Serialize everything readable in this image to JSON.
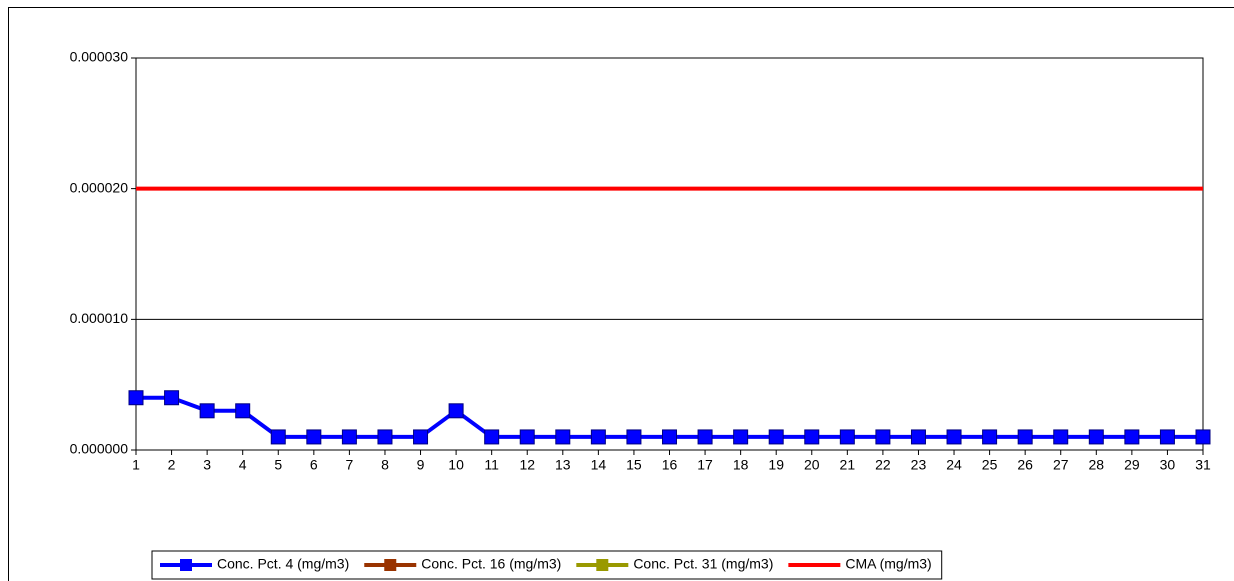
{
  "chart_data": {
    "type": "line",
    "categories": [
      "1",
      "2",
      "3",
      "4",
      "5",
      "6",
      "7",
      "8",
      "9",
      "10",
      "11",
      "12",
      "13",
      "14",
      "15",
      "16",
      "17",
      "18",
      "19",
      "20",
      "21",
      "22",
      "23",
      "24",
      "25",
      "26",
      "27",
      "28",
      "29",
      "30",
      "31"
    ],
    "series": [
      {
        "name": "Conc. Pct. 4 (mg/m3)",
        "color": "#0000ff",
        "marker": "square",
        "values": [
          4e-06,
          4e-06,
          3e-06,
          3e-06,
          1e-06,
          1e-06,
          1e-06,
          1e-06,
          1e-06,
          3e-06,
          1e-06,
          1e-06,
          1e-06,
          1e-06,
          1e-06,
          1e-06,
          1e-06,
          1e-06,
          1e-06,
          1e-06,
          1e-06,
          1e-06,
          1e-06,
          1e-06,
          1e-06,
          1e-06,
          1e-06,
          1e-06,
          1e-06,
          1e-06,
          1e-06
        ]
      },
      {
        "name": "Conc. Pct. 16 (mg/m3)",
        "color": "#993300",
        "marker": "square",
        "values": [
          null,
          null,
          null,
          null,
          null,
          null,
          null,
          null,
          null,
          null,
          null,
          null,
          null,
          null,
          null,
          null,
          null,
          null,
          null,
          null,
          null,
          null,
          null,
          null,
          null,
          null,
          null,
          null,
          null,
          null,
          null
        ]
      },
      {
        "name": "Conc. Pct. 31 (mg/m3)",
        "color": "#999900",
        "marker": "square",
        "values": [
          null,
          null,
          null,
          null,
          null,
          null,
          null,
          null,
          null,
          null,
          null,
          null,
          null,
          null,
          null,
          null,
          null,
          null,
          null,
          null,
          null,
          null,
          null,
          null,
          null,
          null,
          null,
          null,
          null,
          null,
          null
        ]
      },
      {
        "name": "CMA (mg/m3)",
        "color": "#ff0000",
        "values": [
          2e-05,
          2e-05,
          2e-05,
          2e-05,
          2e-05,
          2e-05,
          2e-05,
          2e-05,
          2e-05,
          2e-05,
          2e-05,
          2e-05,
          2e-05,
          2e-05,
          2e-05,
          2e-05,
          2e-05,
          2e-05,
          2e-05,
          2e-05,
          2e-05,
          2e-05,
          2e-05,
          2e-05,
          2e-05,
          2e-05,
          2e-05,
          2e-05,
          2e-05,
          2e-05,
          2e-05
        ]
      }
    ],
    "ylim": [
      0,
      3e-05
    ],
    "yticks": [
      {
        "value": 0,
        "label": "0.000000"
      },
      {
        "value": 1e-05,
        "label": "0.000010"
      },
      {
        "value": 2e-05,
        "label": "0.000020"
      },
      {
        "value": 3e-05,
        "label": "0.000030"
      }
    ],
    "grid": true,
    "legend": "bottom"
  }
}
